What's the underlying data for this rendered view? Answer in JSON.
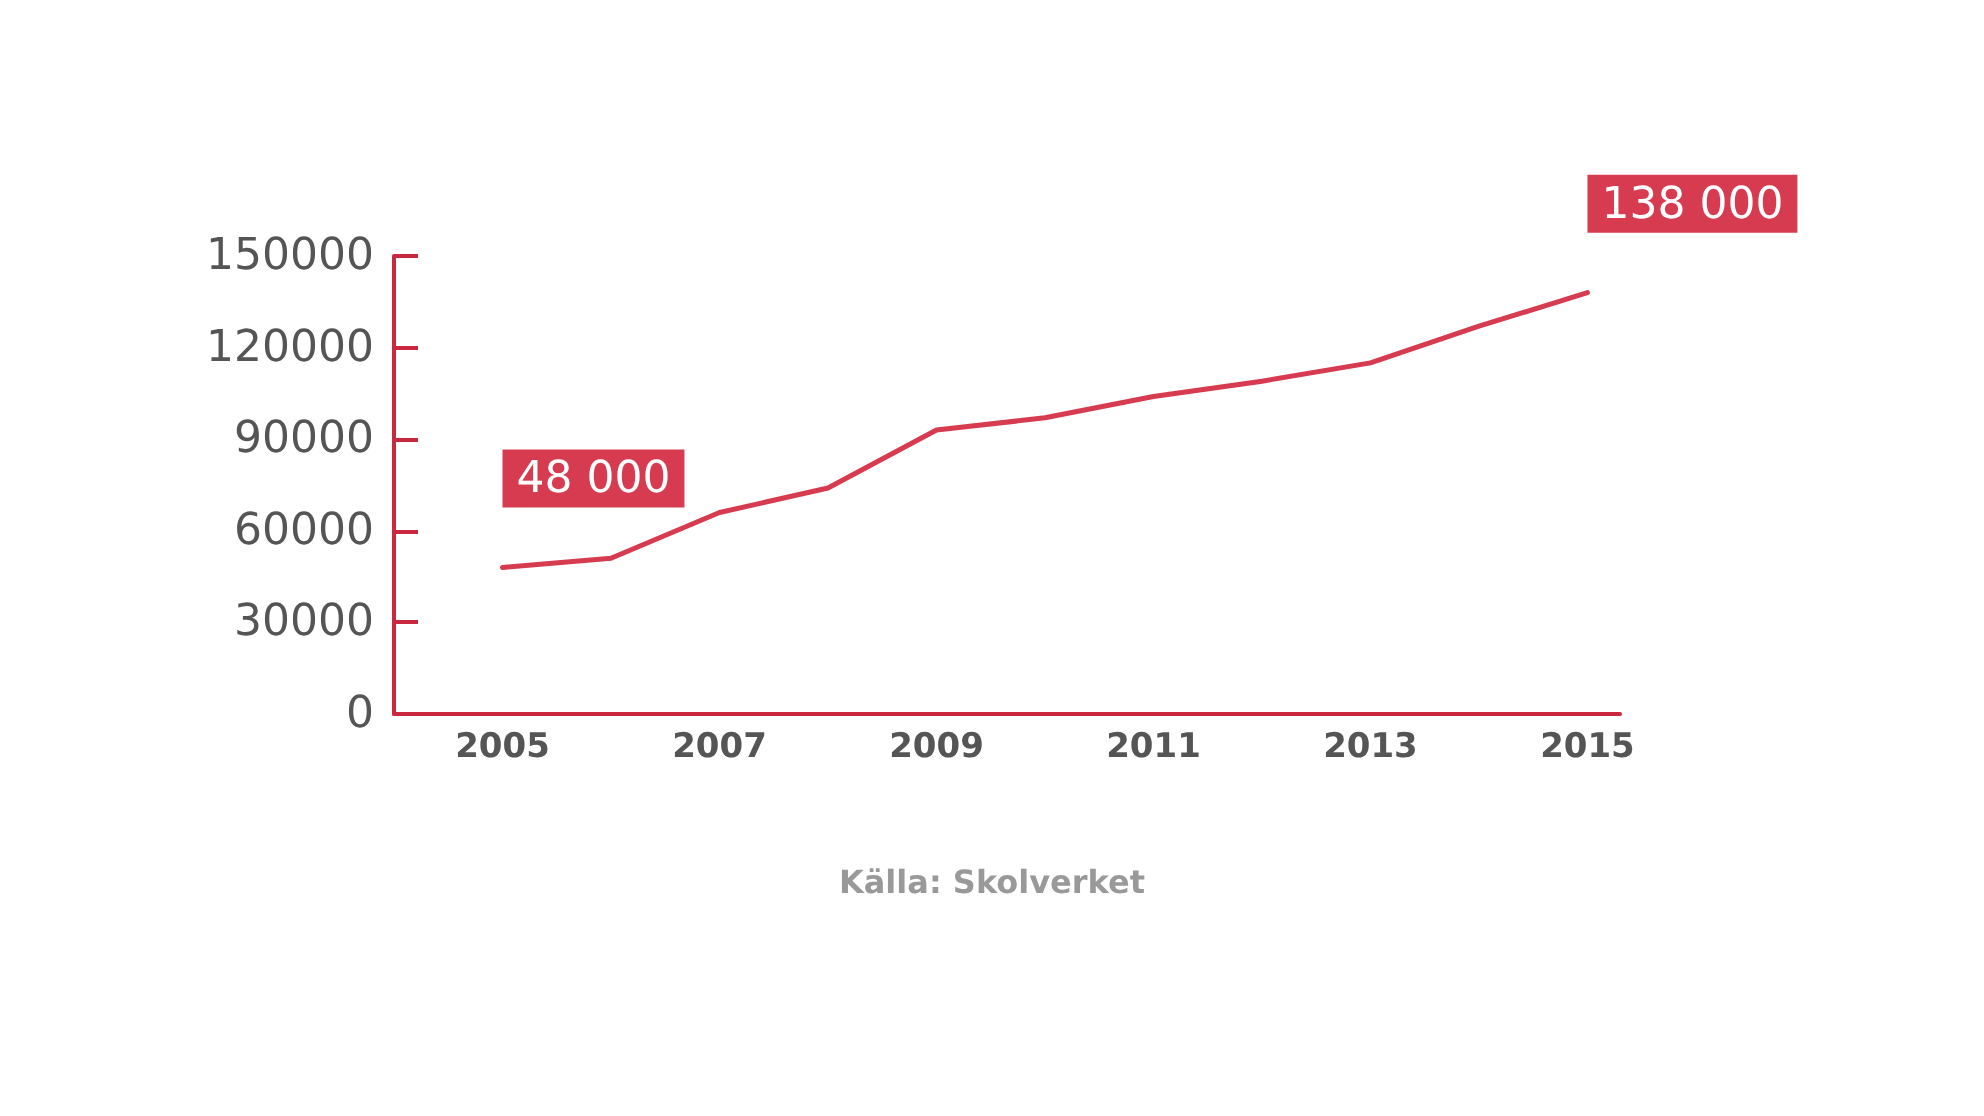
{
  "chart_data": {
    "type": "line",
    "x": [
      2005,
      2006,
      2007,
      2008,
      2009,
      2010,
      2011,
      2012,
      2013,
      2014,
      2015
    ],
    "series": [
      {
        "color": "#d63b50",
        "values": [
          48000,
          51000,
          66000,
          74000,
          93000,
          97000,
          104000,
          109000,
          115000,
          127000,
          138000
        ]
      }
    ],
    "xlim": [
      2004,
      2015.3
    ],
    "xticks": [
      2005,
      2007,
      2009,
      2011,
      2013,
      2015
    ],
    "ylim": [
      0,
      150000
    ],
    "yticks": [
      0,
      30000,
      60000,
      90000,
      120000,
      150000
    ],
    "grid": false,
    "marker": "none",
    "line_style": "solid",
    "annotations": [
      {
        "text": "48 000",
        "x": 2005,
        "y": 48000
      },
      {
        "text": "138 000",
        "x": 2015,
        "y": 138000
      },
      "Källa: Skolverket"
    ]
  }
}
